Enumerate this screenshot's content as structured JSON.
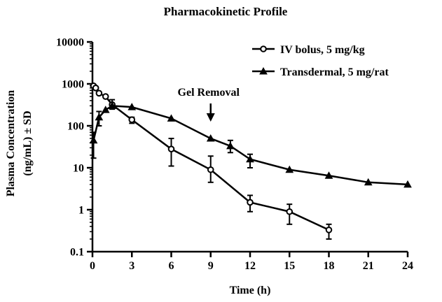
{
  "chart_data": {
    "type": "line",
    "title": "Pharmacokinetic Profile",
    "xlabel": "Time (h)",
    "ylabel_line1": "Plasma Concentration",
    "ylabel_line2": "(ng/mL) ± SD",
    "yscale": "log",
    "xlim": [
      0,
      24
    ],
    "ylim": [
      0.1,
      10000
    ],
    "x_ticks": [
      0,
      3,
      6,
      9,
      12,
      15,
      18,
      21,
      24
    ],
    "x_tick_labels": [
      "0",
      "3",
      "6",
      "9",
      "12",
      "15",
      "18",
      "21",
      "24"
    ],
    "y_ticks": [
      0.1,
      1,
      10,
      100,
      1000,
      10000
    ],
    "y_tick_labels": [
      "0.1",
      "1",
      "10",
      "100",
      "1000",
      "10000"
    ],
    "grid": false,
    "legend_position": "top-right",
    "annotation": {
      "text": "Gel Removal",
      "x": 9
    },
    "series": [
      {
        "name": "IV bolus, 5 mg/kg",
        "marker": "circle",
        "color": "#000000",
        "x": [
          0.083,
          0.25,
          0.5,
          1,
          1.5,
          3,
          6,
          9,
          12,
          15,
          18
        ],
        "y": [
          900,
          800,
          600,
          500,
          320,
          140,
          28,
          9,
          1.5,
          0.9,
          0.33
        ],
        "err_low": [
          0,
          0,
          0,
          0,
          0,
          25,
          17,
          4.5,
          0.6,
          0.45,
          0.13
        ],
        "err_high": [
          0,
          0,
          0,
          0,
          0,
          20,
          22,
          10,
          0.7,
          0.45,
          0.12
        ]
      },
      {
        "name": "Transdermal, 5 mg/rat",
        "marker": "triangle",
        "color": "#000000",
        "x": [
          0.083,
          0.5,
          1,
          1.5,
          3,
          6,
          9,
          10.5,
          12,
          15,
          18,
          21,
          24
        ],
        "y": [
          45,
          160,
          240,
          300,
          280,
          150,
          50,
          33,
          16,
          9,
          6.5,
          4.5,
          4
        ],
        "err_low": [
          28,
          60,
          0,
          50,
          0,
          0,
          0,
          10,
          6,
          0,
          0,
          0,
          0
        ],
        "err_high": [
          25,
          60,
          0,
          120,
          0,
          0,
          0,
          12,
          5,
          0,
          0,
          0,
          0
        ]
      }
    ]
  }
}
